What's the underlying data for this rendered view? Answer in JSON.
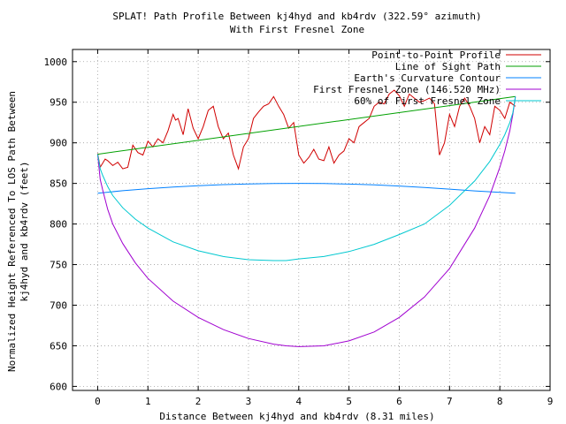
{
  "chart_data": {
    "type": "line",
    "title_line1": "SPLAT! Path Profile Between kj4hyd and kb4rdv (322.59° azimuth)",
    "title_line2": "With First Fresnel Zone",
    "xlabel": "Distance Between kj4hyd and kb4rdv (8.31 miles)",
    "ylabel_line1": "Normalized Height Referenced To LOS Path Between",
    "ylabel_line2": "kj4hyd and kb4rdv (feet)",
    "xlim": [
      -0.5,
      9
    ],
    "ylim": [
      595,
      1015
    ],
    "xticks": [
      "0",
      "1",
      "2",
      "3",
      "4",
      "5",
      "6",
      "7",
      "8",
      "9"
    ],
    "xtick_values": [
      0,
      1,
      2,
      3,
      4,
      5,
      6,
      7,
      8,
      9
    ],
    "yticks": [
      "600",
      "650",
      "700",
      "750",
      "800",
      "850",
      "900",
      "950",
      "1000"
    ],
    "ytick_values": [
      600,
      650,
      700,
      750,
      800,
      850,
      900,
      950,
      1000
    ],
    "grid": true,
    "legend_position": "top-right",
    "series": [
      {
        "name": "Point-to-Point Profile",
        "color": "#d00000",
        "x": [
          0,
          0.05,
          0.1,
          0.15,
          0.2,
          0.3,
          0.4,
          0.5,
          0.6,
          0.7,
          0.8,
          0.9,
          1.0,
          1.1,
          1.2,
          1.3,
          1.4,
          1.5,
          1.55,
          1.6,
          1.7,
          1.8,
          1.9,
          2.0,
          2.1,
          2.2,
          2.3,
          2.4,
          2.5,
          2.6,
          2.7,
          2.8,
          2.9,
          3.0,
          3.1,
          3.2,
          3.3,
          3.4,
          3.5,
          3.6,
          3.7,
          3.8,
          3.9,
          4.0,
          4.1,
          4.2,
          4.3,
          4.4,
          4.5,
          4.6,
          4.7,
          4.8,
          4.9,
          5.0,
          5.1,
          5.2,
          5.3,
          5.4,
          5.5,
          5.6,
          5.7,
          5.8,
          5.9,
          6.0,
          6.1,
          6.2,
          6.3,
          6.4,
          6.5,
          6.6,
          6.7,
          6.8,
          6.9,
          7.0,
          7.1,
          7.2,
          7.3,
          7.4,
          7.5,
          7.6,
          7.7,
          7.8,
          7.9,
          8.0,
          8.1,
          8.2,
          8.31
        ],
        "y": [
          887,
          870,
          875,
          880,
          878,
          872,
          876,
          868,
          870,
          897,
          888,
          885,
          902,
          895,
          905,
          900,
          915,
          935,
          928,
          930,
          910,
          942,
          918,
          905,
          920,
          940,
          945,
          920,
          905,
          912,
          885,
          868,
          895,
          905,
          930,
          938,
          945,
          948,
          957,
          945,
          935,
          918,
          925,
          885,
          875,
          882,
          892,
          880,
          878,
          895,
          875,
          885,
          890,
          905,
          900,
          920,
          925,
          930,
          945,
          950,
          948,
          960,
          965,
          958,
          945,
          960,
          955,
          950,
          952,
          955,
          948,
          885,
          900,
          935,
          920,
          945,
          955,
          945,
          930,
          900,
          920,
          910,
          945,
          940,
          930,
          950,
          945
        ]
      },
      {
        "name": "Line of Sight Path",
        "color": "#00a000",
        "x": [
          0,
          8.31
        ],
        "y": [
          886,
          957
        ]
      },
      {
        "name": "Earth's Curvature Contour",
        "color": "#0080ff",
        "x": [
          0,
          0.5,
          1,
          1.5,
          2,
          2.5,
          3,
          3.5,
          4,
          4.5,
          5,
          5.5,
          6,
          6.5,
          7,
          7.5,
          8,
          8.31
        ],
        "y": [
          838,
          841,
          843.5,
          845.5,
          847.2,
          848.5,
          849.3,
          849.8,
          850,
          849.8,
          849.2,
          848.2,
          846.8,
          845,
          843,
          840.8,
          839,
          838
        ]
      },
      {
        "name": "First Fresnel Zone (146.520 MHz)",
        "color": "#a000d0",
        "x": [
          0,
          0.05,
          0.1,
          0.2,
          0.3,
          0.5,
          0.75,
          1,
          1.5,
          2,
          2.5,
          3,
          3.5,
          3.75,
          4,
          4.5,
          5,
          5.5,
          6,
          6.5,
          7,
          7.5,
          7.8,
          8,
          8.1,
          8.2,
          8.26,
          8.31
        ],
        "y": [
          886,
          855,
          842,
          818,
          800,
          776,
          752,
          733,
          705,
          685,
          670,
          659,
          652,
          650,
          649,
          650,
          656,
          667,
          685,
          710,
          745,
          795,
          835,
          870,
          890,
          915,
          935,
          957
        ]
      },
      {
        "name": "60% of First Fresnel Zone",
        "color": "#00c8d0",
        "x": [
          0,
          0.05,
          0.1,
          0.2,
          0.3,
          0.5,
          0.75,
          1,
          1.5,
          2,
          2.5,
          3,
          3.5,
          3.75,
          4,
          4.5,
          5,
          5.5,
          6,
          6.5,
          7,
          7.5,
          7.8,
          8,
          8.1,
          8.2,
          8.26,
          8.31
        ],
        "y": [
          886,
          868,
          860,
          846,
          835,
          820,
          806,
          795,
          778,
          767,
          760,
          756,
          755,
          755,
          757,
          760,
          766,
          775,
          787,
          800,
          823,
          853,
          877,
          898,
          910,
          925,
          937,
          957
        ]
      }
    ]
  }
}
